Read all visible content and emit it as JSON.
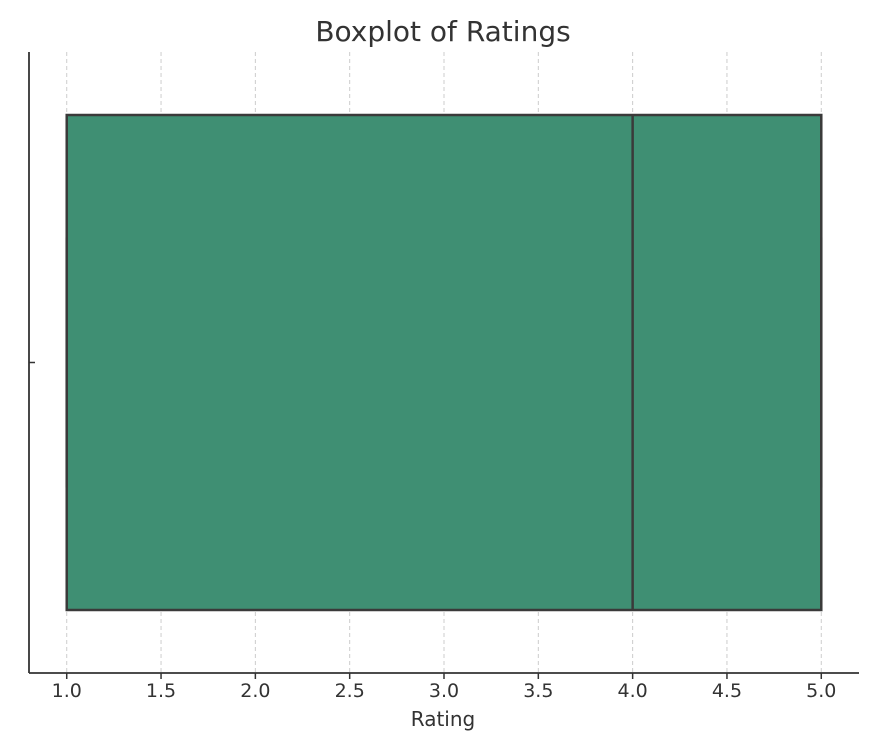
{
  "chart_data": {
    "type": "boxplot",
    "title": "Boxplot of Ratings",
    "xlabel": "Rating",
    "ylabel": "",
    "xlim": [
      0.8,
      5.2
    ],
    "x_ticks": [
      "1.0",
      "1.5",
      "2.0",
      "2.5",
      "3.0",
      "3.5",
      "4.0",
      "4.5",
      "5.0"
    ],
    "grid": "vertical-dashed",
    "box": {
      "min": 1.0,
      "q1": 1.0,
      "median": 4.0,
      "q3": 5.0,
      "max": 5.0
    },
    "colors": {
      "box_fill": "#3f8f73",
      "box_edge": "#3a3a3a",
      "grid": "#cccccc",
      "axis": "#333333"
    }
  }
}
